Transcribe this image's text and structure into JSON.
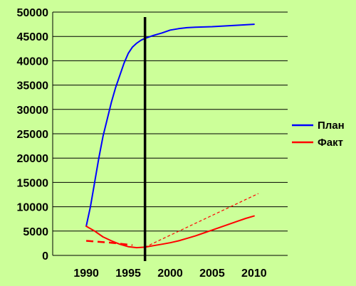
{
  "chart_data": {
    "type": "line",
    "title": "",
    "xlabel": "",
    "ylabel": "",
    "xlim": [
      1986,
      2014
    ],
    "ylim": [
      0,
      50000
    ],
    "x_ticks": [
      "1990",
      "1995",
      "2000",
      "2005",
      "2010"
    ],
    "x_tick_values": [
      1990,
      1995,
      2000,
      2005,
      2010
    ],
    "y_ticks": [
      "0",
      "5000",
      "10000",
      "15000",
      "20000",
      "25000",
      "30000",
      "35000",
      "40000",
      "45000",
      "50000"
    ],
    "y_tick_values": [
      0,
      5000,
      10000,
      15000,
      20000,
      25000,
      30000,
      35000,
      40000,
      45000,
      50000
    ],
    "grid": true,
    "legend_position": "right",
    "background_color": "#ccff99",
    "series": [
      {
        "name": "План",
        "color": "#0000ff",
        "style": "solid",
        "points": [
          [
            1990,
            6000
          ],
          [
            1990.5,
            10000
          ],
          [
            1991,
            15000
          ],
          [
            1991.5,
            20000
          ],
          [
            1992,
            24500
          ],
          [
            1992.5,
            28000
          ],
          [
            1993,
            31500
          ],
          [
            1993.5,
            34500
          ],
          [
            1994,
            37000
          ],
          [
            1994.5,
            39500
          ],
          [
            1995,
            41500
          ],
          [
            1995.5,
            42800
          ],
          [
            1996,
            43600
          ],
          [
            1996.5,
            44200
          ],
          [
            1997,
            44600
          ],
          [
            1998,
            45200
          ],
          [
            1999,
            45700
          ],
          [
            2000,
            46300
          ],
          [
            2001,
            46600
          ],
          [
            2002,
            46800
          ],
          [
            2003,
            46900
          ],
          [
            2005,
            47000
          ],
          [
            2008,
            47300
          ],
          [
            2010,
            47500
          ]
        ]
      },
      {
        "name": "Факт",
        "color": "#ff0000",
        "style": "solid",
        "points": [
          [
            1990,
            6000
          ],
          [
            1991,
            5000
          ],
          [
            1992,
            3800
          ],
          [
            1993,
            3000
          ],
          [
            1994,
            2300
          ],
          [
            1995,
            1800
          ],
          [
            1996,
            1600
          ],
          [
            1997,
            1700
          ],
          [
            1998,
            2000
          ],
          [
            1999,
            2300
          ],
          [
            2000,
            2600
          ],
          [
            2001,
            3000
          ],
          [
            2002,
            3500
          ],
          [
            2003,
            4000
          ],
          [
            2004,
            4600
          ],
          [
            2005,
            5200
          ],
          [
            2006,
            5800
          ],
          [
            2007,
            6400
          ],
          [
            2008,
            7000
          ],
          [
            2009,
            7600
          ],
          [
            2010,
            8100
          ]
        ]
      },
      {
        "color": "#ff0000",
        "style": "dashed-thick",
        "points": [
          [
            1990,
            3000
          ],
          [
            1993,
            2600
          ],
          [
            1995.5,
            2100
          ]
        ]
      },
      {
        "color": "#ff0000",
        "style": "dashed-thin",
        "points": [
          [
            1997,
            1700
          ],
          [
            2010.5,
            12700
          ]
        ]
      }
    ],
    "vertical_marker": {
      "x": 1997,
      "color": "#000000"
    },
    "legend": [
      {
        "label": "План",
        "color": "#0000ff"
      },
      {
        "label": "Факт",
        "color": "#ff0000"
      }
    ]
  }
}
